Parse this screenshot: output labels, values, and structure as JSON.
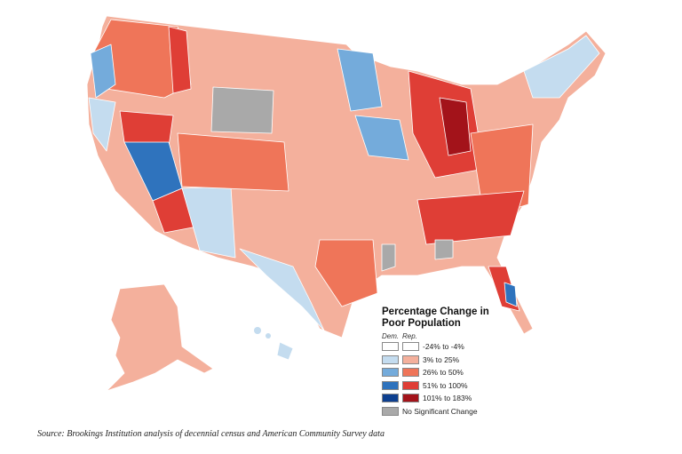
{
  "legend": {
    "title": "Percentage Change in Poor Population",
    "columns": [
      "Dem.",
      "Rep."
    ],
    "items": [
      {
        "label": "-24% to -4%",
        "colors": [
          "#ffffff",
          "#ffffff"
        ]
      },
      {
        "label": "3% to 25%",
        "colors": [
          "#c4dcef",
          "#f4b09c"
        ]
      },
      {
        "label": "26% to 50%",
        "colors": [
          "#74abdb",
          "#ef7559"
        ]
      },
      {
        "label": "51% to 100%",
        "colors": [
          "#2f73bd",
          "#df3e36"
        ]
      },
      {
        "label": "101% to 183%",
        "colors": [
          "#0d3f8f",
          "#a3131a"
        ]
      },
      {
        "label": "No Significant Change",
        "colors": [
          "#a9a9a9"
        ]
      }
    ]
  },
  "source": "Source: Brookings Institution analysis of decennial census and American Community Survey data"
}
